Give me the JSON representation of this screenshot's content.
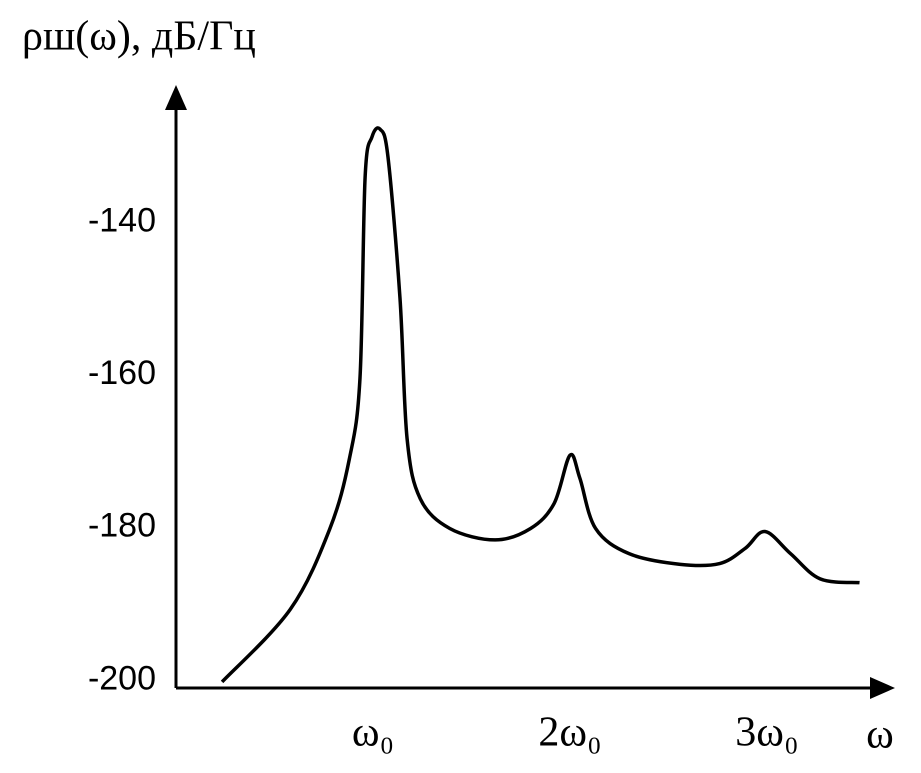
{
  "chart_data": {
    "type": "line",
    "y_label": "ρш(ω), дБ/Гц",
    "x_label": "ω",
    "x": [
      0.234,
      0.58,
      0.78,
      0.88,
      0.934,
      0.96,
      0.995,
      1.036,
      1.076,
      1.137,
      1.173,
      1.24,
      1.39,
      1.62,
      1.8,
      1.92,
      2.0,
      2.05,
      2.13,
      2.3,
      2.56,
      2.76,
      2.89,
      2.99,
      3.12,
      3.27,
      3.47
    ],
    "values": [
      -200.2,
      -190.7,
      -180.2,
      -171,
      -160.4,
      -134.1,
      -128.8,
      -127.8,
      -131.4,
      -149.9,
      -168.3,
      -176.2,
      -180.1,
      -181.6,
      -180.1,
      -176.8,
      -170.5,
      -173.5,
      -180.1,
      -183.4,
      -184.8,
      -184.7,
      -182.7,
      -180.5,
      -183.4,
      -186.7,
      -187.2
    ],
    "color": "#000000",
    "xlim": [
      0,
      3.65
    ],
    "xticks": [
      {
        "value": 1,
        "label": "ω₀"
      },
      {
        "value": 2,
        "label": "2ω₀"
      },
      {
        "value": 3,
        "label": "3ω₀"
      }
    ],
    "ylim": [
      -201,
      -122
    ],
    "yticks": [
      -140,
      -160,
      -180,
      -200
    ],
    "grid": false
  }
}
